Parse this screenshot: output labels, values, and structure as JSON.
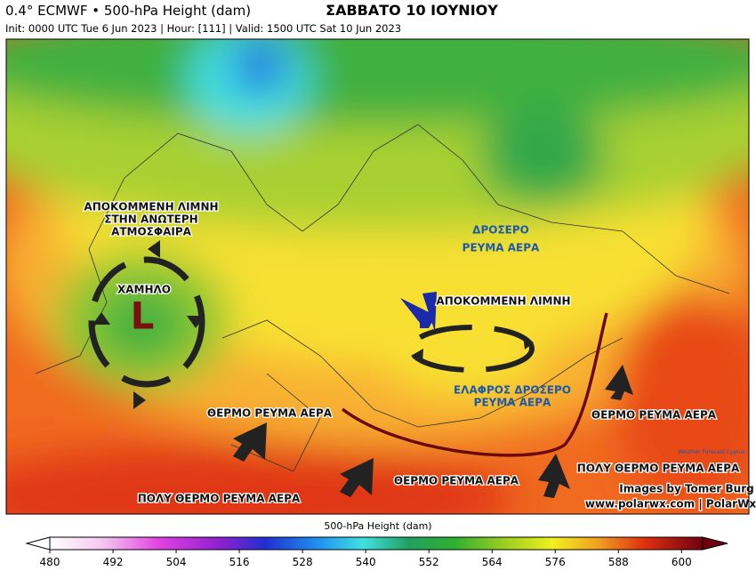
{
  "header": {
    "product": "0.4° ECMWF • 500-hPa Height (dam)",
    "title": "ΣΑΒΒΑΤΟ 10 ΙΟΥΝΙΟΥ",
    "run": "Init: 0000 UTC Tue 6 Jun 2023 | Hour: [111] | Valid: 1500 UTC Sat 10 Jun 2023"
  },
  "annotations": {
    "west_low": [
      "ΑΠΟΚΟΜΜΕΝΗ ΛΙΜΝΗ",
      "ΣΤΗΝ ΑΝΩΤΕΡΗ",
      "ΑΤΜΟΣΦΑΙΡΑ"
    ],
    "low_label": "ΧΑΜΗΛΟ",
    "low_symbol": "L",
    "cool_flow": [
      "ΔΡΟΣΕΡΟ",
      "ΡΕΥΜΑ ΑΕΡΑ"
    ],
    "balkan_low": "ΑΠΟΚΟΜΜΕΝΗ ΛΙΜΝΗ",
    "mild_cool_flow": [
      "ΕΛΑΦΡΟΣ ΔΡΟΣΕΡΟ",
      "ΡΕΥΜΑ ΑΕΡΑ"
    ],
    "warm_flow_west": "ΘΕΡΜΟ ΡΕΥΜΑ ΑΕΡΑ",
    "warm_flow_south": "ΘΕΡΜΟ ΡΕΥΜΑ ΑΕΡΑ",
    "warm_flow_east": "ΘΕΡΜΟ ΡΕΥΜΑ ΑΕΡΑ",
    "very_warm_southwest": "ΠΟΛΥ ΘΕΡΜΟ ΡΕΥΜΑ ΑΕΡΑ",
    "very_warm_east": "ΠΟΛΥ ΘΕΡΜΟ ΡΕΥΜΑ ΑΕΡΑ"
  },
  "credits": {
    "author": "Images by Tomer Burg",
    "site": "www.polarwx.com | PolarWx",
    "logo": "Weather Forecast Cyprus"
  },
  "colorbar": {
    "title": "500-hPa Height (dam)",
    "range": [
      480,
      604
    ],
    "ticks": [
      480,
      492,
      504,
      516,
      528,
      540,
      552,
      564,
      576,
      588,
      600
    ]
  }
}
